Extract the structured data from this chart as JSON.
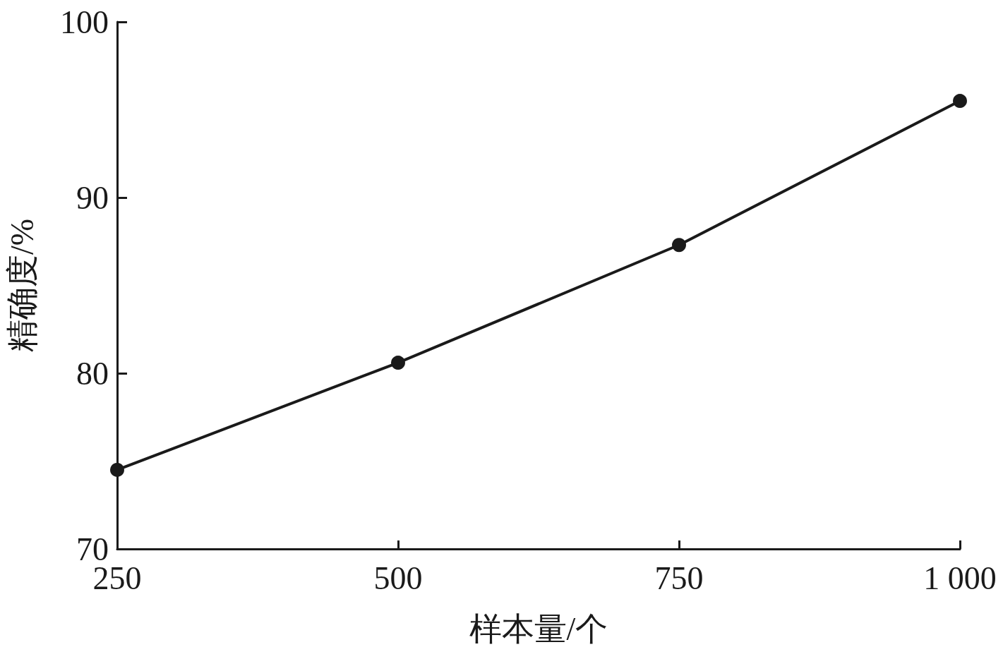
{
  "chart_data": {
    "type": "line",
    "xlabel": "样本量/个",
    "ylabel": "精确度/%",
    "x": [
      250,
      500,
      750,
      1000
    ],
    "series": [
      {
        "color": "#1a1a1a",
        "values": [
          74.5,
          80.6,
          87.3,
          95.5
        ]
      }
    ],
    "xlim": [
      250,
      1000
    ],
    "xticks": [
      250,
      500,
      750,
      {
        "value": 1000,
        "label": "1 000"
      }
    ],
    "ylim": [
      70,
      100
    ],
    "yticks": [
      70,
      80,
      90,
      100
    ],
    "grid": false,
    "marker": "circle",
    "line_style": "solid"
  }
}
